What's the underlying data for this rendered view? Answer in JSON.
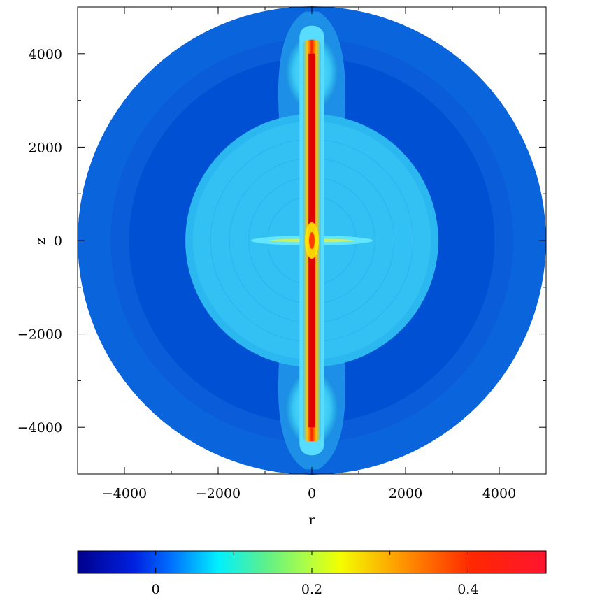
{
  "chart_data": {
    "type": "heatmap",
    "title": "",
    "xlabel": "r",
    "ylabel": "z",
    "xlim": [
      -5000,
      5000
    ],
    "ylim": [
      -5000,
      5000
    ],
    "x_ticks": [
      -4000,
      -2000,
      0,
      2000,
      4000
    ],
    "x_tick_labels": [
      "−4000",
      "−2000",
      "0",
      "2000",
      "4000"
    ],
    "y_ticks": [
      4000,
      2000,
      0,
      -2000,
      -4000
    ],
    "y_tick_labels": [
      "4000",
      "2000",
      "0",
      "−2000",
      "−4000"
    ],
    "colorbar": {
      "range": [
        -0.1,
        0.5
      ],
      "ticks": [
        0,
        0.2,
        0.4
      ],
      "tick_labels": [
        "0",
        "0.2",
        "0.4"
      ],
      "colormap": "jet"
    },
    "field": {
      "domain_radius": 5000,
      "outer_value": 0.0,
      "dark_shell": {
        "inner_radius": 2700,
        "outer_radius": 4300,
        "value": -0.02
      },
      "inner_bubble": {
        "radius": 2700,
        "value": 0.08
      },
      "jet": {
        "z_extent": 4300,
        "half_width": 120,
        "value": 0.42
      },
      "lobes": [
        {
          "z_range": [
            2600,
            4900
          ],
          "half_width": 700,
          "value": 0.1
        },
        {
          "z_range": [
            -4900,
            -2600
          ],
          "half_width": 700,
          "value": 0.1
        }
      ],
      "equatorial_feature": {
        "r_extent": 1300,
        "value": 0.12
      }
    }
  },
  "colors": {
    "background": "#ffffff",
    "frame": "#000000"
  }
}
